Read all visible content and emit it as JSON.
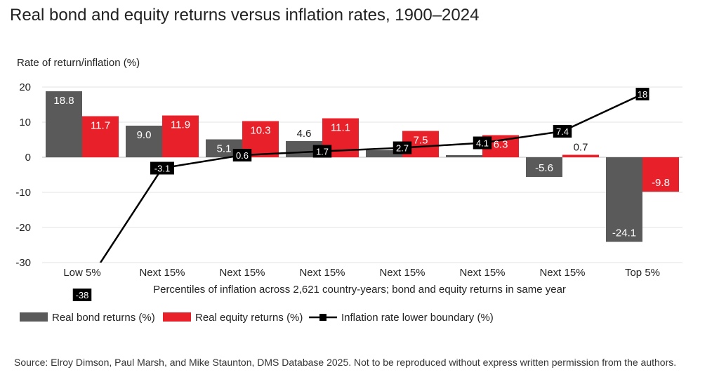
{
  "chart_data": {
    "type": "bar",
    "title": "Real bond and equity returns versus inflation rates, 1900–2024",
    "ylabel": "Rate of return/inflation (%)",
    "xlabel": "Percentiles of inflation across 2,621 country-years; bond and equity returns in same year",
    "ylim": [
      -30,
      20
    ],
    "yticks": [
      20,
      10,
      0,
      -10,
      -20,
      -30
    ],
    "grid": true,
    "legend_position": "bottom-left",
    "categories": [
      "Low 5%",
      "Next 15%",
      "Next 15%",
      "Next 15%",
      "Next 15%",
      "Next 15%",
      "Next 15%",
      "Top 5%"
    ],
    "series": [
      {
        "name": "Real bond returns (%)",
        "kind": "bar",
        "color": "#5a5a5a",
        "values": [
          18.8,
          9.0,
          5.1,
          4.6,
          2.0,
          0.6,
          -5.6,
          -24.1
        ],
        "labels": [
          "18.8",
          "9.0",
          "5.1",
          "4.6",
          "",
          "",
          "-5.6",
          "-24.1"
        ]
      },
      {
        "name": "Real equity returns (%)",
        "kind": "bar",
        "color": "#e8202a",
        "values": [
          11.7,
          11.9,
          10.3,
          11.1,
          7.5,
          6.3,
          0.7,
          -9.8
        ],
        "labels": [
          "11.7",
          "11.9",
          "10.3",
          "11.1",
          "7.5",
          "6.3",
          "0.7",
          "-9.8"
        ]
      },
      {
        "name": "Inflation rate lower boundary (%)",
        "kind": "line",
        "color": "#000000",
        "values": [
          -38,
          -3.1,
          0.6,
          1.7,
          2.7,
          4.1,
          7.4,
          18
        ],
        "labels": [
          "-38",
          "-3.1",
          "0.6",
          "1.7",
          "2.7",
          "4.1",
          "7.4",
          "18"
        ]
      }
    ]
  },
  "source": "Source: Elroy Dimson, Paul Marsh, and Mike Staunton, DMS Database 2025. Not to be reproduced without express written permission from the authors."
}
